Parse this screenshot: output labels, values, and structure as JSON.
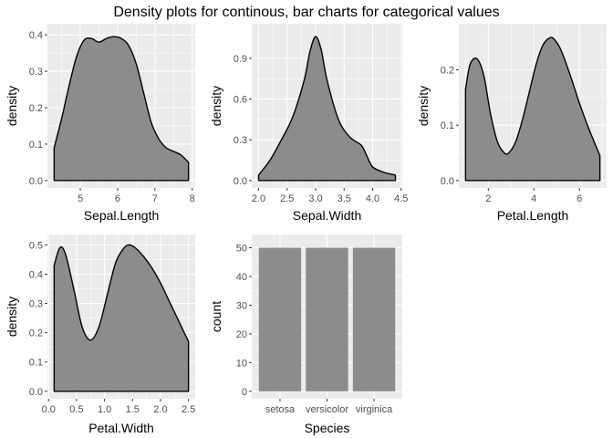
{
  "title": "Density plots for continous, bar charts for categorical values",
  "colors": {
    "panel_background": "#ebebeb",
    "grid": "#ffffff",
    "fill": "#8c8c8c",
    "outline": "#000000"
  },
  "chart_data": [
    {
      "id": "sepal-length",
      "type": "area",
      "xlabel": "Sepal.Length",
      "ylabel": "density",
      "xlim": [
        4.3,
        7.9
      ],
      "ylim": [
        0,
        0.41
      ],
      "xticks": [
        5,
        6,
        7,
        8
      ],
      "yticks": [
        0.0,
        0.1,
        0.2,
        0.3,
        0.4
      ],
      "ytick_labels": [
        "0.0",
        "0.1",
        "0.2",
        "0.3",
        "0.4"
      ],
      "grid": true,
      "x": [
        4.3,
        4.5,
        4.7,
        4.9,
        5.1,
        5.3,
        5.5,
        5.7,
        5.9,
        6.1,
        6.3,
        6.5,
        6.7,
        6.9,
        7.1,
        7.3,
        7.5,
        7.7,
        7.9
      ],
      "y": [
        0.09,
        0.17,
        0.26,
        0.34,
        0.385,
        0.39,
        0.38,
        0.39,
        0.395,
        0.39,
        0.37,
        0.32,
        0.24,
        0.16,
        0.115,
        0.09,
        0.08,
        0.07,
        0.05
      ]
    },
    {
      "id": "sepal-width",
      "type": "area",
      "xlabel": "Sepal.Width",
      "ylabel": "density",
      "xlim": [
        2.0,
        4.4
      ],
      "ylim": [
        0,
        1.1
      ],
      "xticks": [
        2.0,
        2.5,
        3.0,
        3.5,
        4.0,
        4.5
      ],
      "xtick_labels": [
        "2.0",
        "2.5",
        "3.0",
        "3.5",
        "4.0",
        "4.5"
      ],
      "yticks": [
        0.0,
        0.3,
        0.6,
        0.9
      ],
      "ytick_labels": [
        "0.0",
        "0.3",
        "0.6",
        "0.9"
      ],
      "grid": true,
      "x": [
        2.0,
        2.2,
        2.4,
        2.6,
        2.8,
        2.9,
        3.0,
        3.1,
        3.2,
        3.4,
        3.6,
        3.8,
        3.9,
        4.0,
        4.2,
        4.4
      ],
      "y": [
        0.04,
        0.15,
        0.3,
        0.47,
        0.74,
        0.95,
        1.06,
        0.96,
        0.74,
        0.45,
        0.32,
        0.26,
        0.18,
        0.1,
        0.06,
        0.04
      ]
    },
    {
      "id": "petal-length",
      "type": "area",
      "xlabel": "Petal.Length",
      "ylabel": "density",
      "xlim": [
        1.0,
        6.9
      ],
      "ylim": [
        0,
        0.27
      ],
      "xticks": [
        2,
        4,
        6
      ],
      "yticks": [
        0.0,
        0.1,
        0.2
      ],
      "ytick_labels": [
        "0.0",
        "0.1",
        "0.2"
      ],
      "grid": true,
      "x": [
        1.0,
        1.2,
        1.5,
        1.8,
        2.1,
        2.4,
        2.7,
        2.9,
        3.2,
        3.5,
        3.8,
        4.1,
        4.4,
        4.7,
        4.9,
        5.2,
        5.6,
        6.0,
        6.4,
        6.9
      ],
      "y": [
        0.165,
        0.21,
        0.22,
        0.19,
        0.12,
        0.07,
        0.05,
        0.05,
        0.07,
        0.11,
        0.16,
        0.21,
        0.245,
        0.258,
        0.255,
        0.235,
        0.19,
        0.14,
        0.095,
        0.045
      ]
    },
    {
      "id": "petal-width",
      "type": "area",
      "xlabel": "Petal.Width",
      "ylabel": "density",
      "xlim": [
        0.1,
        2.5
      ],
      "ylim": [
        0,
        0.51
      ],
      "xticks": [
        0.0,
        0.5,
        1.0,
        1.5,
        2.0,
        2.5
      ],
      "xtick_labels": [
        "0.0",
        "0.5",
        "1.0",
        "1.5",
        "2.0",
        "2.5"
      ],
      "yticks": [
        0.0,
        0.1,
        0.2,
        0.3,
        0.4,
        0.5
      ],
      "ytick_labels": [
        "0.0",
        "0.1",
        "0.2",
        "0.3",
        "0.4",
        "0.5"
      ],
      "grid": true,
      "x": [
        0.1,
        0.2,
        0.3,
        0.45,
        0.6,
        0.75,
        0.9,
        1.05,
        1.2,
        1.35,
        1.45,
        1.55,
        1.7,
        1.85,
        2.0,
        2.15,
        2.3,
        2.5
      ],
      "y": [
        0.43,
        0.49,
        0.47,
        0.35,
        0.22,
        0.175,
        0.22,
        0.33,
        0.44,
        0.49,
        0.5,
        0.49,
        0.46,
        0.42,
        0.37,
        0.31,
        0.25,
        0.17
      ]
    },
    {
      "id": "species",
      "type": "bar",
      "xlabel": "Species",
      "ylabel": "count",
      "categories": [
        "setosa",
        "versicolor",
        "virginica"
      ],
      "values": [
        50,
        50,
        50
      ],
      "ylim": [
        0,
        52
      ],
      "yticks": [
        0,
        10,
        20,
        30,
        40,
        50
      ],
      "ytick_labels": [
        "0",
        "10",
        "20",
        "30",
        "40",
        "50"
      ],
      "grid": true
    }
  ]
}
